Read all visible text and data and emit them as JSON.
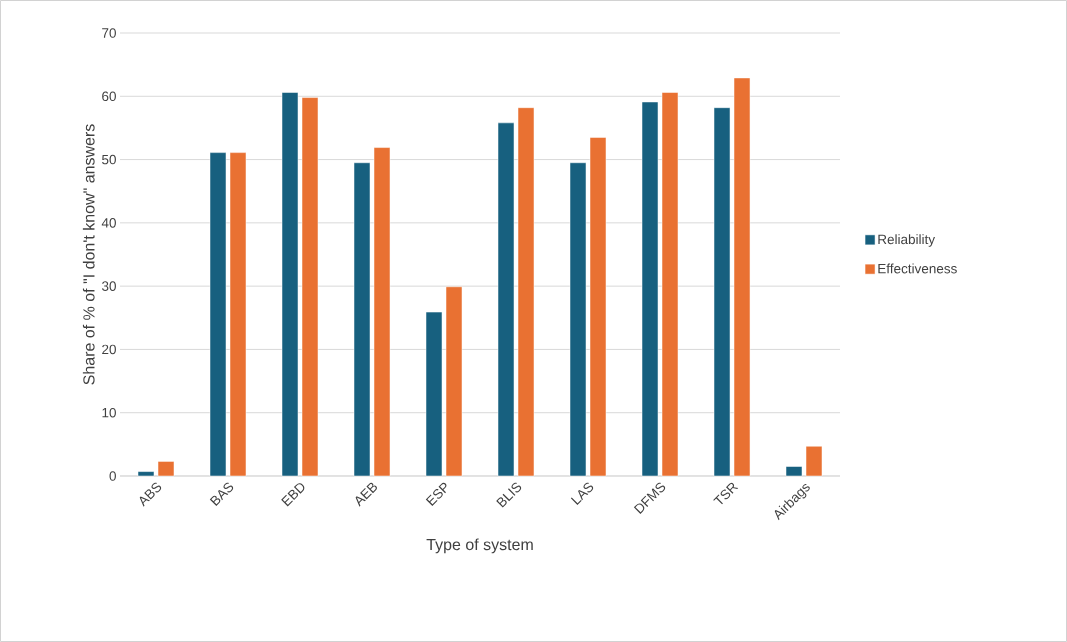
{
  "chart_data": {
    "type": "bar",
    "xlabel": "Type of system",
    "ylabel": "Share of % of \"I don't know\" answers",
    "categories": [
      "ABS",
      "BAS",
      "EBD",
      "AEB",
      "ESP",
      "BLIS",
      "LAS",
      "DFMS",
      "TSR",
      "Airbags"
    ],
    "series": [
      {
        "name": "Reliability",
        "color": "#17607f",
        "values": [
          0.7,
          51.1,
          60.6,
          49.5,
          25.9,
          55.8,
          49.5,
          59.1,
          58.2,
          1.5
        ]
      },
      {
        "name": "Effectiveness",
        "color": "#e97132",
        "values": [
          2.3,
          51.1,
          59.8,
          51.9,
          29.9,
          58.2,
          53.5,
          60.6,
          62.9,
          4.7
        ]
      }
    ],
    "ylim": [
      0,
      70
    ],
    "yticks": [
      0,
      10,
      20,
      30,
      40,
      50,
      60,
      70
    ],
    "grid": "y",
    "legend": "right"
  }
}
